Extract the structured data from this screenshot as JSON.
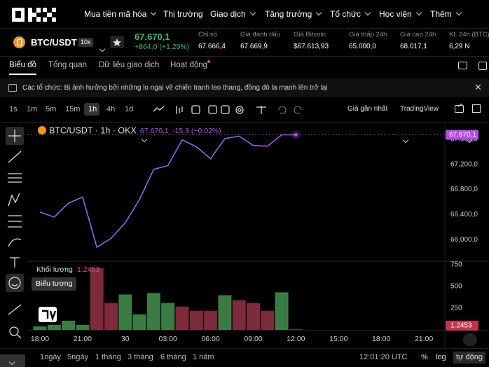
{
  "nav": {
    "items": [
      "Mua tiền mã hóa",
      "Thị trường",
      "Giao dịch",
      "Tăng trưởng",
      "Tổ chức",
      "Học viện",
      "Thêm"
    ]
  },
  "ticker": {
    "pair": "BTC/USDT",
    "leverage": "10x",
    "price": "67.670,1",
    "change": "+864,0 (+1,29%)",
    "stats": [
      {
        "label": "Chỉ số",
        "value": "67.666,4"
      },
      {
        "label": "Giá đánh dấu",
        "value": "67.669,9"
      },
      {
        "label": "Giá Bitcoin",
        "value": "$67.613,93"
      },
      {
        "label": "Giá thấp 24h",
        "value": "65.000,0"
      },
      {
        "label": "Giá cao 24h",
        "value": "68.017,1"
      },
      {
        "label": "KL 24h (BTC)",
        "value": "6,29 N"
      }
    ]
  },
  "tabs": {
    "items": [
      "Biểu đồ",
      "Tổng quan",
      "Dữ liệu giao dịch",
      "Hoạt động"
    ]
  },
  "notice": "Các tổ chức: Bị ảnh hưởng bởi những lo ngại về chiến tranh leo thang, đồng đô la mạnh lên trở lại",
  "toolbar": {
    "intervals": [
      "1s",
      "1m",
      "5m",
      "15m",
      "1h",
      "4h",
      "1d"
    ],
    "price_source": "Giá gần nhất",
    "chart_mode": "TradingView"
  },
  "tooltip": "Biểu tượng",
  "chart_data": {
    "type": "line",
    "title": "BTC/USDT · 1h · OKX",
    "change": "-15,3 (−0.02%)",
    "last_price": {
      "value": 67670.1,
      "label": "67.670,1"
    },
    "categories": [
      "18:00",
      null,
      null,
      "21:00",
      null,
      null,
      "30",
      null,
      null,
      "03:00",
      null,
      null,
      "06:00",
      null,
      null,
      "09:00",
      null,
      null,
      "12:00",
      null,
      null,
      "15:00",
      null,
      null,
      "18:00",
      null,
      null,
      "21:00"
    ],
    "values": [
      66440,
      66360,
      66580,
      66680,
      65880,
      66020,
      66270,
      66640,
      67120,
      67180,
      67590,
      67480,
      67290,
      67610,
      67650,
      67500,
      67490,
      67670,
      67670.1,
      null,
      null,
      null,
      null,
      null,
      null,
      null,
      null,
      null
    ],
    "gradient": [
      "#4f86f7",
      "#b14ef0"
    ],
    "ylim": [
      65690,
      67810
    ],
    "yticks": [
      {
        "value": 66000,
        "label": "66.000,0"
      },
      {
        "value": 66400,
        "label": "66.400,0"
      },
      {
        "value": 66800,
        "label": "66.800,0"
      },
      {
        "value": 67200,
        "label": "67.200,0"
      },
      {
        "value": 67600,
        "label": "67.600,0"
      }
    ],
    "volume": {
      "title": "Khối lượng",
      "values": [
        40,
        57,
        106,
        57,
        709,
        310,
        407,
        179,
        424,
        310,
        269,
        220,
        220,
        399,
        342,
        310,
        220,
        432,
        1.2453,
        null,
        null,
        null,
        null,
        null,
        null,
        null,
        null,
        null
      ],
      "colors": [
        "#3a7d44",
        "#3a7d44",
        "#3a7d44",
        "#3a7d44",
        "#7d2a3a",
        "#7d2a3a",
        "#3a7d44",
        "#3a7d44",
        "#3a7d44",
        "#3a7d44",
        "#7d2a3a",
        "#7d2a3a",
        "#7d2a3a",
        "#3a7d44",
        "#7d2a3a",
        "#7d2a3a",
        "#7d2a3a",
        "#3a7d44",
        "#7d2a3a",
        null,
        null,
        null,
        null,
        null,
        null,
        null,
        null,
        null
      ],
      "ylim": [
        0,
        790
      ],
      "yticks": [
        250,
        500,
        750
      ]
    }
  },
  "footer": {
    "ranges": [
      "1ngày",
      "5ngày",
      "1 tháng",
      "3 tháng",
      "6 tháng",
      "1 năm"
    ],
    "clock": "12:01:20 UTC",
    "options": [
      "%",
      "log",
      "tự động"
    ]
  }
}
